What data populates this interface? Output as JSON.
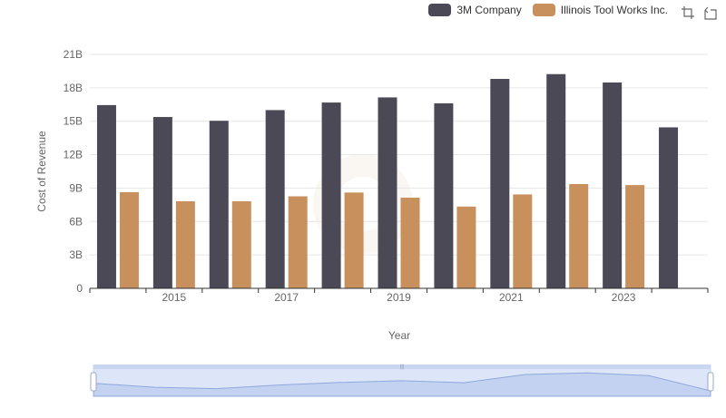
{
  "legend": {
    "items": [
      {
        "label": "3M Company",
        "color": "#4a4955"
      },
      {
        "label": "Illinois Tool Works Inc.",
        "color": "#c8905c"
      }
    ]
  },
  "toolbox": {
    "icons": [
      "zoom-icon",
      "restore-icon"
    ]
  },
  "chart_data": {
    "type": "bar",
    "x": [
      2014,
      2015,
      2016,
      2017,
      2018,
      2019,
      2020,
      2021,
      2022,
      2023,
      2024
    ],
    "x_tick_labels": [
      "2015",
      "2017",
      "2019",
      "2021",
      "2023"
    ],
    "xlabel": "Year",
    "ylabel": "Cost of Revenue",
    "ylim": [
      0,
      21
    ],
    "y_ticks": [
      0,
      3,
      6,
      9,
      12,
      15,
      18,
      21
    ],
    "y_tick_labels": [
      "0",
      "3B",
      "6B",
      "9B",
      "12B",
      "15B",
      "18B",
      "21B"
    ],
    "grid": true,
    "series": [
      {
        "name": "3M Company",
        "color": "#4a4955",
        "values": [
          16.45,
          15.38,
          15.04,
          16.0,
          16.68,
          17.14,
          16.61,
          18.8,
          19.23,
          18.48,
          14.45
        ]
      },
      {
        "name": "Illinois Tool Works Inc.",
        "color": "#c8905c",
        "values": [
          8.63,
          7.82,
          7.82,
          8.26,
          8.6,
          8.14,
          7.34,
          8.43,
          9.36,
          9.27,
          null
        ]
      }
    ],
    "data_zoom": {
      "start": 0,
      "end": 100
    }
  }
}
